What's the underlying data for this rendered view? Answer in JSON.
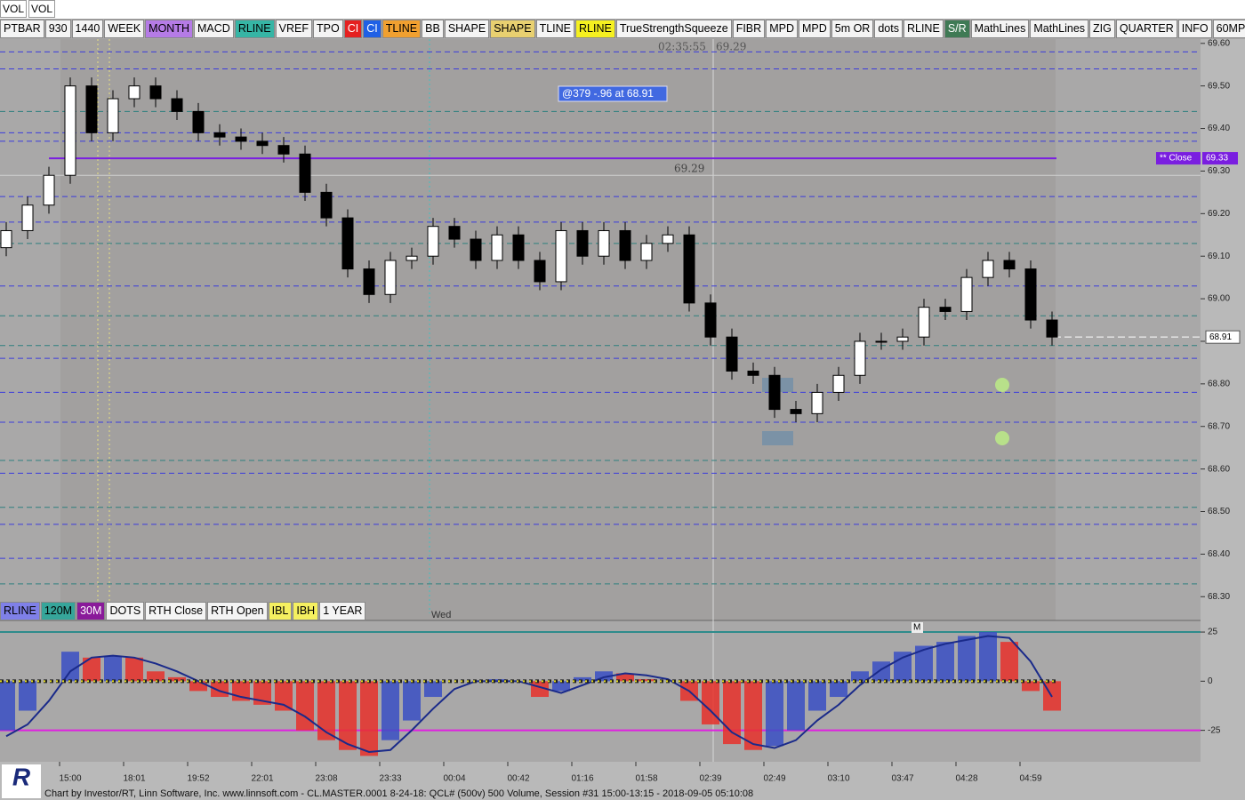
{
  "window_title": [
    "VOL",
    "VOL"
  ],
  "toolbar": [
    {
      "label": "PTBAR"
    },
    {
      "label": "930"
    },
    {
      "label": "1440"
    },
    {
      "label": "WEEK"
    },
    {
      "label": "MONTH",
      "bg": "#b57be6"
    },
    {
      "label": "MACD"
    },
    {
      "label": "RLINE",
      "bg": "#36b5a5"
    },
    {
      "label": "VREF"
    },
    {
      "label": "TPO"
    },
    {
      "label": "CI",
      "bg": "#e52020"
    },
    {
      "label": "CI",
      "bg": "#2060e5"
    },
    {
      "label": "TLINE",
      "bg": "#f0a030"
    },
    {
      "label": "BB"
    },
    {
      "label": "SHAPE"
    },
    {
      "label": "SHAPE",
      "bg": "#e8d070"
    },
    {
      "label": "TLINE"
    },
    {
      "label": "RLINE",
      "bg": "#f5f020"
    },
    {
      "label": "TrueStrengthSqueeze"
    },
    {
      "label": "FIBR"
    },
    {
      "label": "MPD"
    },
    {
      "label": "MPD"
    },
    {
      "label": "5m OR"
    },
    {
      "label": "dots"
    },
    {
      "label": "RLINE"
    },
    {
      "label": "S/R",
      "bg": "#3f7a55"
    },
    {
      "label": "MathLines"
    },
    {
      "label": "MathLines"
    },
    {
      "label": "ZIG"
    },
    {
      "label": "QUARTER"
    },
    {
      "label": "INFO"
    },
    {
      "label": "60MP"
    }
  ],
  "indicator_buttons": [
    {
      "label": "RLINE",
      "bg": "#7f80e8"
    },
    {
      "label": "120M",
      "bg": "#36a59a"
    },
    {
      "label": "30M",
      "bg": "#8a1a9a"
    },
    {
      "label": "DOTS"
    },
    {
      "label": "RTH Close"
    },
    {
      "label": "RTH Open"
    },
    {
      "label": "IBL",
      "bg": "#f5f060"
    },
    {
      "label": "IBH",
      "bg": "#f5f060"
    },
    {
      "label": "1 YEAR"
    }
  ],
  "logo": "R",
  "footer": "Chart by Investor/RT, Linn Software, Inc. www.linnsoft.com - CL.MASTER.0001  8-24-18: QCL# (500v) 500 Volume, Session #31 15:00-13:15 - 2018-09-05 05:10:08",
  "chart_data": [
    {
      "type": "candlestick",
      "categories": [
        null,
        null,
        null,
        "15:00",
        null,
        null,
        "18:01",
        null,
        null,
        "19:52",
        null,
        null,
        "22:01",
        null,
        null,
        "23:08",
        null,
        null,
        "23:33",
        null,
        null,
        "00:04",
        null,
        null,
        "00:42",
        null,
        null,
        "01:16",
        null,
        null,
        "01:58",
        null,
        null,
        "02:39",
        null,
        null,
        "02:49",
        null,
        null,
        "03:10",
        null,
        null,
        "03:47",
        null,
        null,
        "04:28",
        null,
        null,
        "04:59",
        null
      ],
      "open": [
        69.12,
        69.16,
        69.22,
        69.29,
        69.5,
        69.39,
        69.47,
        69.5,
        69.47,
        69.44,
        69.39,
        69.38,
        69.37,
        69.36,
        69.34,
        69.25,
        69.19,
        69.07,
        69.01,
        69.09,
        69.1,
        69.17,
        69.14,
        69.09,
        69.15,
        69.09,
        69.04,
        69.16,
        69.1,
        69.16,
        69.09,
        69.13,
        69.15,
        68.99,
        68.91,
        68.83,
        68.82,
        68.74,
        68.73,
        68.78,
        68.82,
        68.9,
        68.9,
        68.91,
        68.98,
        68.97,
        69.05,
        69.09,
        69.07,
        68.95
      ],
      "high": [
        69.18,
        69.24,
        69.31,
        69.52,
        69.52,
        69.49,
        69.52,
        69.52,
        69.49,
        69.46,
        69.41,
        69.4,
        69.39,
        69.38,
        69.36,
        69.27,
        69.21,
        69.09,
        69.11,
        69.12,
        69.19,
        69.19,
        69.16,
        69.17,
        69.17,
        69.11,
        69.18,
        69.18,
        69.18,
        69.18,
        69.15,
        69.17,
        69.17,
        69.01,
        68.93,
        68.85,
        68.84,
        68.76,
        68.8,
        68.84,
        68.92,
        68.92,
        68.93,
        69.0,
        69.0,
        69.07,
        69.11,
        69.11,
        69.09,
        68.97
      ],
      "low": [
        69.1,
        69.14,
        69.2,
        69.27,
        69.37,
        69.37,
        69.45,
        69.45,
        69.42,
        69.37,
        69.36,
        69.35,
        69.34,
        69.32,
        69.23,
        69.17,
        69.05,
        68.99,
        68.99,
        69.07,
        69.08,
        69.12,
        69.07,
        69.07,
        69.07,
        69.02,
        69.02,
        69.08,
        69.08,
        69.07,
        69.07,
        69.11,
        68.97,
        68.89,
        68.81,
        68.8,
        68.72,
        68.71,
        68.71,
        68.76,
        68.8,
        68.88,
        68.88,
        68.89,
        68.95,
        68.95,
        69.03,
        69.05,
        68.93,
        68.89
      ],
      "close": [
        69.16,
        69.22,
        69.29,
        69.5,
        69.39,
        69.47,
        69.5,
        69.47,
        69.44,
        69.39,
        69.38,
        69.37,
        69.36,
        69.34,
        69.25,
        69.19,
        69.07,
        69.01,
        69.09,
        69.1,
        69.17,
        69.14,
        69.09,
        69.15,
        69.09,
        69.04,
        69.16,
        69.1,
        69.16,
        69.09,
        69.13,
        69.15,
        68.99,
        68.91,
        68.83,
        68.82,
        68.74,
        68.73,
        68.78,
        68.82,
        68.9,
        68.9,
        68.91,
        68.98,
        68.97,
        69.05,
        69.09,
        69.07,
        68.95,
        68.91
      ],
      "up_color": "#ffffff",
      "down_color": "#000000",
      "ylim": [
        68.24,
        69.61
      ],
      "yticks": [
        {
          "value": 69.6,
          "label": "69.60"
        },
        {
          "value": 69.5,
          "label": "69.50"
        },
        {
          "value": 69.4,
          "label": "69.40"
        },
        {
          "value": 69.3,
          "label": "69.30"
        },
        {
          "value": 69.2,
          "label": "69.20"
        },
        {
          "value": 69.1,
          "label": "69.10"
        },
        {
          "value": 69.0,
          "label": "69.00"
        },
        {
          "value": 68.9,
          "label": "68.90"
        },
        {
          "value": 68.8,
          "label": "68.80"
        },
        {
          "value": 68.7,
          "label": "68.70"
        },
        {
          "value": 68.6,
          "label": "68.60"
        },
        {
          "value": 68.5,
          "label": "68.50"
        },
        {
          "value": 68.4,
          "label": "68.40"
        },
        {
          "value": 68.3,
          "label": "68.30"
        }
      ],
      "levels": [
        {
          "value": 69.58,
          "color": "#3b3bdc"
        },
        {
          "value": 69.54,
          "color": "#3b3bdc"
        },
        {
          "value": 69.44,
          "color": "#2e7f7f"
        },
        {
          "value": 69.39,
          "color": "#3b3bdc"
        },
        {
          "value": 69.37,
          "color": "#3b3bdc"
        },
        {
          "value": 69.24,
          "color": "#3b3bdc"
        },
        {
          "value": 69.18,
          "color": "#3b3bdc"
        },
        {
          "value": 69.13,
          "color": "#2e7f7f"
        },
        {
          "value": 69.03,
          "color": "#3b3bdc"
        },
        {
          "value": 68.96,
          "color": "#2e7f7f"
        },
        {
          "value": 68.89,
          "color": "#2e7f7f"
        },
        {
          "value": 68.86,
          "color": "#3b3bdc"
        },
        {
          "value": 68.78,
          "color": "#3b3bdc"
        },
        {
          "value": 68.71,
          "color": "#3b3bdc"
        },
        {
          "value": 68.62,
          "color": "#2e7f7f"
        },
        {
          "value": 68.59,
          "color": "#3b3bdc"
        },
        {
          "value": 68.51,
          "color": "#2e7f7f"
        },
        {
          "value": 68.47,
          "color": "#3b3bdc"
        },
        {
          "value": 68.39,
          "color": "#3b3bdc"
        },
        {
          "value": 68.33,
          "color": "#2e7f7f"
        }
      ],
      "close_line": {
        "label": "** Close",
        "value": 69.33,
        "color": "#7a1ee0"
      },
      "last_price": 68.91,
      "crosshair": {
        "time": "02:35:55",
        "price": 69.29
      },
      "annotation": "@379  -.96 at 68.91",
      "session_label": "Wed"
    },
    {
      "type": "bar",
      "values": [
        -25,
        -15,
        0,
        15,
        12,
        13,
        12,
        5,
        2,
        -5,
        -8,
        -10,
        -12,
        -15,
        -25,
        -30,
        -35,
        -38,
        -30,
        -20,
        -8,
        0,
        0,
        1,
        0,
        -8,
        -5,
        2,
        5,
        4,
        1,
        0,
        -10,
        -22,
        -32,
        -35,
        -33,
        -25,
        -15,
        -8,
        5,
        10,
        15,
        18,
        20,
        23,
        25,
        20,
        -5,
        -15
      ],
      "signal": [
        -28,
        -22,
        -10,
        5,
        12,
        13,
        12,
        9,
        5,
        0,
        -5,
        -8,
        -10,
        -12,
        -18,
        -26,
        -32,
        -36,
        -35,
        -25,
        -14,
        -4,
        0,
        0,
        0,
        -3,
        -6,
        -2,
        2,
        4,
        3,
        1,
        -5,
        -15,
        -26,
        -32,
        -34,
        -30,
        -20,
        -12,
        -2,
        6,
        12,
        16,
        19,
        21,
        23,
        22,
        10,
        -8
      ],
      "rise_color": "#3a4fc4",
      "fall_color": "#e8302a",
      "signal_color": "#1a2a8a",
      "ylim": [
        -41,
        30
      ],
      "yticks": [
        25,
        0,
        -25
      ],
      "levels": [
        {
          "value": 25,
          "color": "#2e8b8b"
        },
        {
          "value": -25,
          "color": "#e020e0"
        }
      ],
      "marker": "M"
    }
  ]
}
